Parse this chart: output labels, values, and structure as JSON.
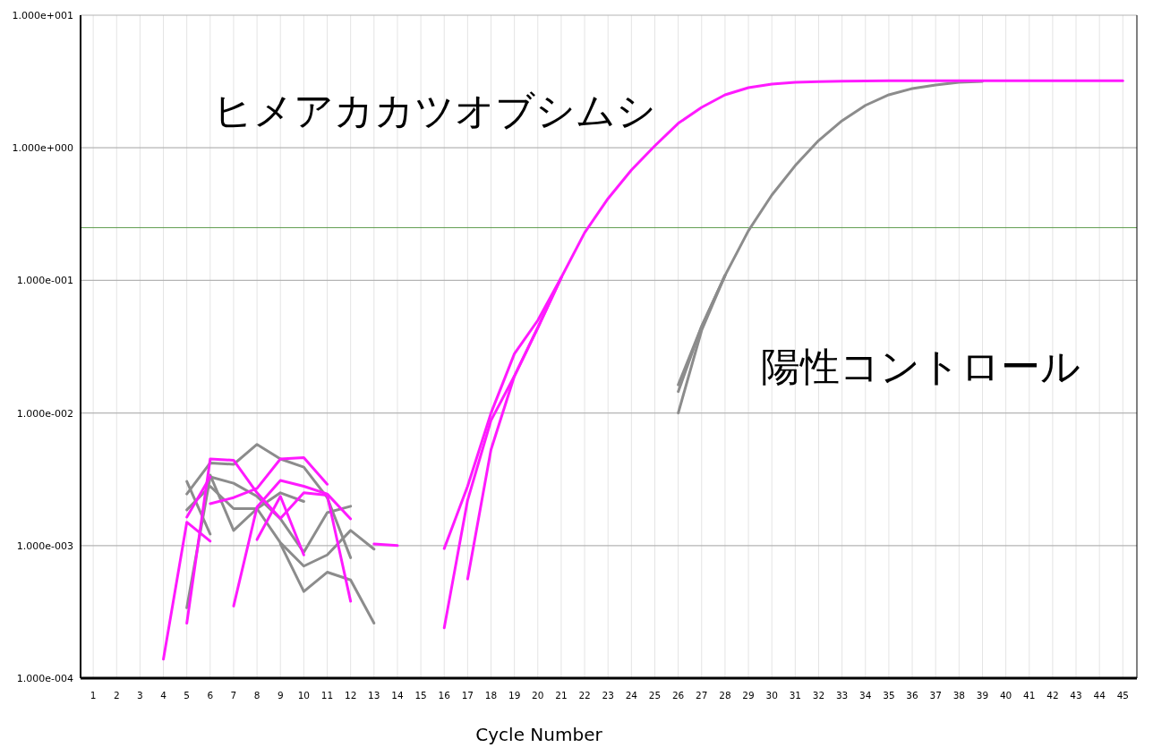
{
  "chart_data": {
    "type": "line",
    "xlabel": "Cycle Number",
    "log": "y",
    "grid": true,
    "xlim": [
      0.46,
      45.6
    ],
    "ylim": [
      0.0001,
      10
    ],
    "xticks": [
      1,
      2,
      3,
      4,
      5,
      6,
      7,
      8,
      9,
      10,
      11,
      12,
      13,
      14,
      15,
      16,
      17,
      18,
      19,
      20,
      21,
      22,
      23,
      24,
      25,
      26,
      27,
      28,
      29,
      30,
      31,
      32,
      33,
      34,
      35,
      36,
      37,
      38,
      39,
      40,
      41,
      42,
      43,
      44,
      45
    ],
    "yticks": [
      {
        "value": 0.0001,
        "label": "1.000e-004"
      },
      {
        "value": 0.001,
        "label": "1.000e-003"
      },
      {
        "value": 0.01,
        "label": "1.000e-002"
      },
      {
        "value": 0.1,
        "label": "1.000e-001"
      },
      {
        "value": 1,
        "label": "1.000e+000"
      },
      {
        "value": 10,
        "label": "1.000e+001"
      }
    ],
    "ref_lines": [
      {
        "axis": "y",
        "value": 0.25,
        "color": "#5a9a4a"
      }
    ],
    "annotations": [
      "ヒメアカカツオブシムシ",
      "陽性コントロール"
    ],
    "series": [
      {
        "color": "#8c8c8c",
        "x": [
          26,
          27,
          28,
          29,
          30,
          31,
          32,
          33,
          34,
          35,
          36,
          37,
          38,
          39
        ],
        "values": [
          0.0163,
          0.045,
          0.109,
          0.237,
          0.44,
          0.734,
          1.135,
          1.6,
          2.09,
          2.51,
          2.8,
          2.98,
          3.12,
          3.17
        ]
      },
      {
        "color": "#8c8c8c",
        "x": [
          26,
          27,
          28
        ],
        "values": [
          0.0145,
          0.045,
          0.109
        ]
      },
      {
        "color": "#8c8c8c",
        "x": [
          26,
          27,
          28
        ],
        "values": [
          0.01,
          0.042,
          0.109
        ]
      },
      {
        "color": "#8c8c8c",
        "x": [
          5,
          6
        ],
        "values": [
          0.00305,
          0.00122
        ]
      },
      {
        "color": "#8c8c8c",
        "x": [
          5,
          6,
          7,
          8,
          9,
          10,
          11,
          12
        ],
        "values": [
          0.00034,
          0.0033,
          0.00295,
          0.00235,
          0.00159,
          0.00089,
          0.00177,
          0.00198
        ]
      },
      {
        "color": "#8c8c8c",
        "x": [
          5,
          6,
          7,
          8,
          9,
          10,
          11,
          12
        ],
        "values": [
          0.00245,
          0.0042,
          0.0041,
          0.0058,
          0.0045,
          0.0039,
          0.0023,
          0.00081
        ]
      },
      {
        "color": "#8c8c8c",
        "x": [
          5,
          6,
          7,
          8,
          9,
          10
        ],
        "values": [
          0.00186,
          0.0028,
          0.0019,
          0.0019,
          0.0025,
          0.00215
        ]
      },
      {
        "color": "#8c8c8c",
        "x": [
          6,
          7,
          8,
          9,
          10,
          11,
          12,
          13
        ],
        "values": [
          0.0034,
          0.0013,
          0.0019,
          0.00105,
          0.0007,
          0.00085,
          0.0013,
          0.00094
        ]
      },
      {
        "color": "#8c8c8c",
        "x": [
          9,
          10,
          11,
          12,
          13
        ],
        "values": [
          0.00103,
          0.00045,
          0.00063,
          0.00055,
          0.00026
        ]
      },
      {
        "color": "#ff1aff",
        "x": [
          4,
          5,
          6
        ],
        "values": [
          0.000139,
          0.0015,
          0.00108
        ]
      },
      {
        "color": "#ff1aff",
        "x": [
          5,
          6,
          7,
          8,
          9,
          10,
          11,
          12
        ],
        "values": [
          0.00026,
          0.0045,
          0.0044,
          0.0025,
          0.0016,
          0.0025,
          0.0024,
          0.00038
        ]
      },
      {
        "color": "#ff1aff",
        "x": [
          6,
          7,
          8,
          9,
          10,
          11
        ],
        "values": [
          0.00207,
          0.0023,
          0.0027,
          0.0045,
          0.0046,
          0.0029
        ]
      },
      {
        "color": "#ff1aff",
        "x": [
          7,
          8,
          9,
          10,
          11,
          12
        ],
        "values": [
          0.00035,
          0.00195,
          0.0031,
          0.0028,
          0.00245,
          0.00159
        ]
      },
      {
        "color": "#ff1aff",
        "x": [
          8,
          9,
          10
        ],
        "values": [
          0.00111,
          0.00235,
          0.00085
        ]
      },
      {
        "color": "#ff1aff",
        "x": [
          5,
          6
        ],
        "values": [
          0.00164,
          0.0033
        ]
      },
      {
        "color": "#ff1aff",
        "x": [
          13,
          14
        ],
        "values": [
          0.00103,
          0.001
        ]
      },
      {
        "color": "#ff1aff",
        "x": [
          16,
          17,
          18,
          19,
          20,
          21,
          22,
          23,
          24,
          25,
          26,
          27,
          28,
          29,
          30,
          31,
          32,
          33,
          34,
          35,
          36,
          37,
          38,
          39,
          40,
          41,
          42,
          43,
          44,
          45
        ],
        "values": [
          0.00095,
          0.0028,
          0.01,
          0.028,
          0.05,
          0.105,
          0.229,
          0.414,
          0.68,
          1.035,
          1.53,
          2.02,
          2.51,
          2.84,
          3.02,
          3.12,
          3.16,
          3.18,
          3.19,
          3.2,
          3.2,
          3.2,
          3.2,
          3.2,
          3.2,
          3.2,
          3.2,
          3.2,
          3.2,
          3.2
        ]
      },
      {
        "color": "#ff1aff",
        "x": [
          16,
          17,
          18,
          19,
          20,
          21
        ],
        "values": [
          0.00024,
          0.0022,
          0.0088,
          0.019,
          0.044,
          0.105
        ]
      },
      {
        "color": "#ff1aff",
        "x": [
          17,
          18,
          19,
          20,
          21
        ],
        "values": [
          0.00056,
          0.0053,
          0.019,
          0.044,
          0.105
        ]
      }
    ]
  }
}
